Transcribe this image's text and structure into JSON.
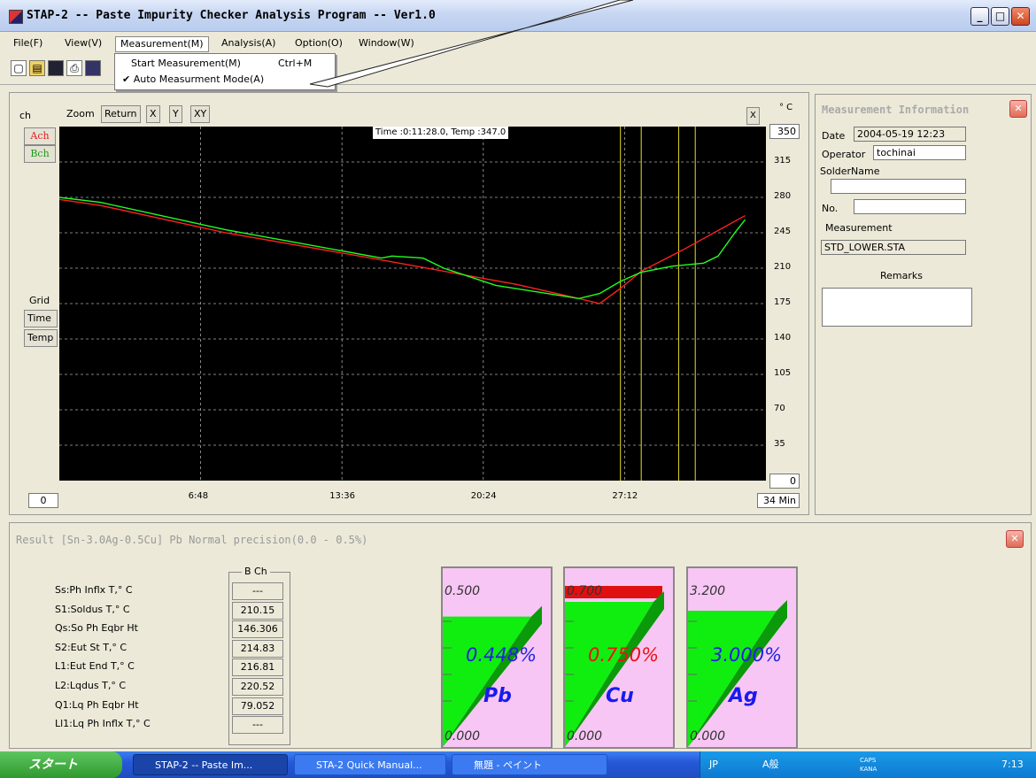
{
  "window": {
    "title": "STAP-2  -- Paste Impurity Checker Analysis Program --  Ver1.0"
  },
  "menu": [
    "File(F)",
    "View(V)",
    "Measurement(M)",
    "Analysis(A)",
    "Option(O)",
    "Window(W)"
  ],
  "dropdown": {
    "item1": "Start Measurement(M)",
    "item1_shortcut": "Ctrl+M",
    "item2": "✔ Auto Measurment Mode(A)"
  },
  "graph": {
    "ch_label": "ch",
    "zoom_label": "Zoom",
    "return_label": "Return",
    "x_label": "X",
    "y_label": "Y",
    "xy_label": "XY",
    "x_close": "X",
    "unit_c": "° C",
    "ach": "Ach",
    "bch": "Bch",
    "grid_label": "Grid",
    "time_btn": "Time",
    "temp_btn": "Temp",
    "readout": "Time :0:11:28.0,  Temp :347.0",
    "y_max": "350",
    "y_min": "0",
    "x_min": "0",
    "x_max": "34 Min",
    "y_ticks": [
      "315",
      "280",
      "245",
      "210",
      "175",
      "140",
      "105",
      "70",
      "35"
    ],
    "x_ticks": [
      "6:48",
      "13:36",
      "20:24",
      "27:12"
    ]
  },
  "chart_data": {
    "type": "line",
    "x_unit": "min",
    "xlim": [
      0,
      34
    ],
    "ylim": [
      0,
      350
    ],
    "series": [
      {
        "color": "#ff2020",
        "x": [
          0,
          2,
          8,
          15,
          22,
          25,
          26,
          27,
          28,
          30,
          33
        ],
        "y": [
          278,
          272,
          245,
          220,
          194,
          180,
          175,
          190,
          207,
          228,
          262
        ]
      },
      {
        "color": "#20ff20",
        "x": [
          0,
          2,
          8,
          15.5,
          16,
          17.5,
          18.5,
          21,
          25,
          26,
          27,
          28,
          29.5,
          31,
          31.7,
          32.5,
          33
        ],
        "y": [
          280,
          275,
          248,
          220,
          222,
          220,
          210,
          193,
          180,
          185,
          197,
          206,
          212,
          215,
          222,
          245,
          258
        ]
      }
    ],
    "vlines_x": [
      27,
      28,
      29.8,
      30.6
    ]
  },
  "info": {
    "title": "Measurement Information",
    "date_label": "Date",
    "date_value": "2004-05-19  12:23",
    "operator_label": "Operator",
    "operator_value": "tochinai",
    "solder_label": "SolderName",
    "solder_value": "",
    "no_label": "No.",
    "no_value": "",
    "measurement_label": "Measurement",
    "measurement_value": "STD_LOWER.STA",
    "remarks_label": "Remarks"
  },
  "result": {
    "title": "Result    [Sn-3.0Ag-0.5Cu]  Pb Normal precision(0.0 - 0.5%)",
    "bch_header": "B Ch",
    "rows": [
      {
        "label": "Ss:Ph Inflx T,° C",
        "value": "---"
      },
      {
        "label": "S1:Soldus T,° C",
        "value": "210.15"
      },
      {
        "label": "Qs:So Ph Eqbr Ht",
        "value": "146.306"
      },
      {
        "label": "S2:Eut St T,° C",
        "value": "214.83"
      },
      {
        "label": "L1:Eut End T,° C",
        "value": "216.81"
      },
      {
        "label": "L2:Lqdus T,° C",
        "value": "220.52"
      },
      {
        "label": "Q1:Lq Ph Eqbr Ht",
        "value": "79.052"
      },
      {
        "label": "Ll1:Lq Ph Inflx T,° C",
        "value": "---"
      }
    ],
    "gauges": [
      {
        "element": "Pb",
        "max": "0.500",
        "min": "0.000",
        "value": "0.448%",
        "value_color": "#2222dd",
        "level": 0.896
      },
      {
        "element": "Cu",
        "max": "0.700",
        "min": "0.000",
        "value": "0.750%",
        "value_color": "#ee1111",
        "level": 1.071
      },
      {
        "element": "Ag",
        "max": "3.200",
        "min": "0.000",
        "value": "3.000%",
        "value_color": "#2222dd",
        "level": 0.9375
      }
    ]
  },
  "taskbar": {
    "start": "スタート",
    "tasks": [
      "STAP-2  -- Paste Im...",
      "STA-2 Quick Manual...",
      "無題 - ペイント"
    ],
    "ime": "JP",
    "ime2": "A般",
    "caps": "CAPS KANA",
    "clock": "7:13"
  }
}
